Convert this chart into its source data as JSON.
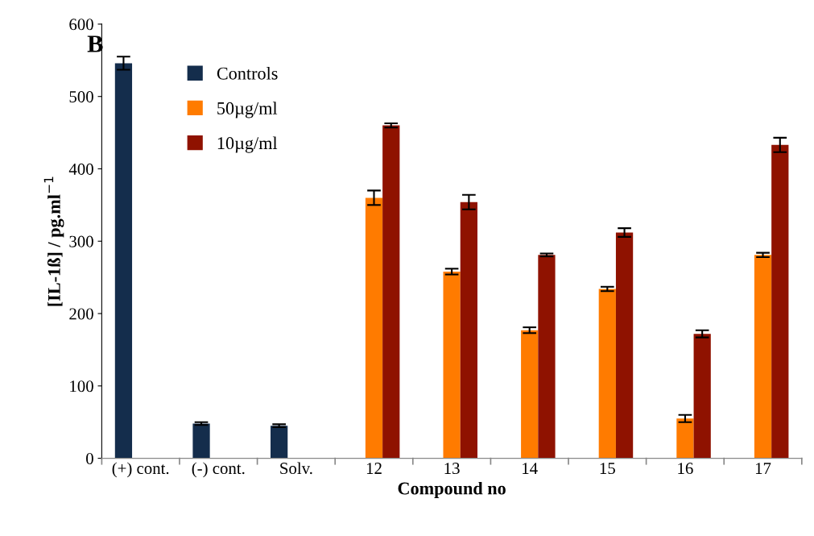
{
  "chart_data": {
    "type": "bar",
    "categories": [
      "(+) cont.",
      "(-) cont.",
      "Solv.",
      "12",
      "13",
      "14",
      "15",
      "16",
      "17"
    ],
    "series": [
      {
        "name": "Controls",
        "color": "#142d4c",
        "values": [
          546,
          48,
          45,
          null,
          null,
          null,
          null,
          null,
          null
        ],
        "errors": [
          9,
          2,
          2,
          null,
          null,
          null,
          null,
          null,
          null
        ]
      },
      {
        "name": "50µg/ml",
        "color": "#ff7b00",
        "values": [
          null,
          null,
          null,
          360,
          258,
          177,
          234,
          55,
          281
        ],
        "errors": [
          null,
          null,
          null,
          10,
          4,
          4,
          3,
          5,
          3
        ]
      },
      {
        "name": "10µg/ml",
        "color": "#8f1200",
        "values": [
          null,
          null,
          null,
          460,
          354,
          281,
          312,
          172,
          433
        ],
        "errors": [
          null,
          null,
          null,
          3,
          10,
          2,
          6,
          5,
          10
        ]
      }
    ],
    "xlabel": "Compound no",
    "ylabel": "[IL-1ß] / pg.ml$^{−1}$",
    "ylim": [
      0,
      600
    ],
    "yticks": [
      0,
      100,
      200,
      300,
      400,
      500,
      600
    ],
    "annotations": [
      "B"
    ],
    "legend": "top left",
    "grid": false
  }
}
